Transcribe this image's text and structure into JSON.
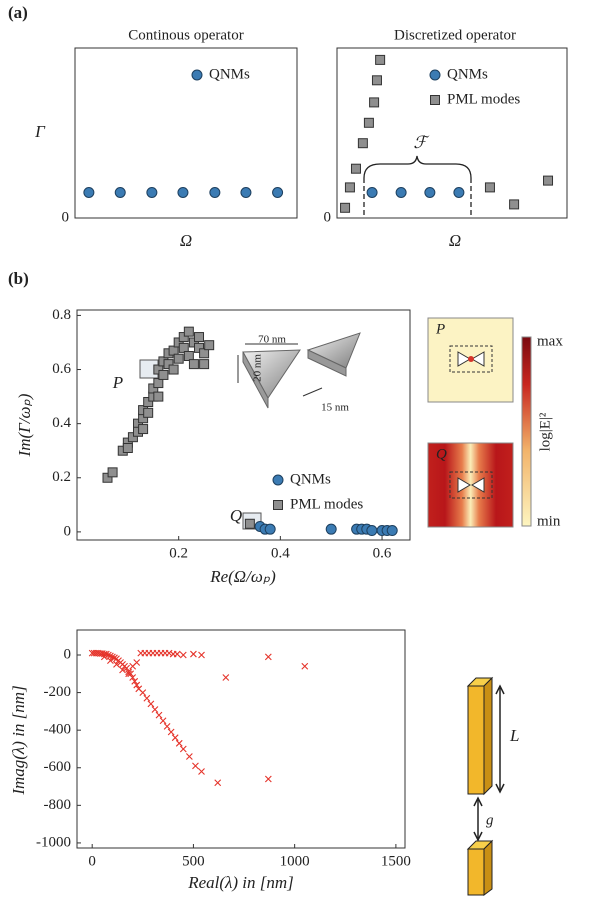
{
  "panel_labels": [
    "(a)",
    "(b)"
  ],
  "chart_data": [
    {
      "type": "scatter",
      "title": "Continous operator",
      "x_label": "Ω",
      "y_label": "Γ",
      "xlim": [
        0,
        8
      ],
      "ylim": [
        0,
        1
      ],
      "yticks": [
        0
      ],
      "legend": "upper right",
      "series": [
        {
          "name": "QNMs",
          "color": "#3b7bb3",
          "marker": "circle",
          "x": [
            0.5,
            1.63,
            2.77,
            3.89,
            5.04,
            6.16,
            7.3
          ],
          "y": [
            0.15,
            0.15,
            0.15,
            0.15,
            0.15,
            0.15,
            0.15
          ]
        }
      ]
    },
    {
      "type": "scatter",
      "title": "Discretized operator",
      "x_label": "Ω",
      "xlim": [
        0,
        8
      ],
      "ylim": [
        0,
        1
      ],
      "yticks": [
        0
      ],
      "legend": "upper right",
      "annotations": [
        "ℱ"
      ],
      "series": [
        {
          "name": "QNMs",
          "color": "#3b7bb3",
          "marker": "circle",
          "x": [
            1.22,
            2.23,
            3.23,
            4.24
          ],
          "y": [
            0.15,
            0.15,
            0.15,
            0.15
          ]
        },
        {
          "name": "PML modes",
          "color": "#8f8f8f",
          "marker": "square",
          "x": [
            0.28,
            0.45,
            0.66,
            0.9,
            1.11,
            1.29,
            1.39,
            1.5,
            5.32,
            6.16,
            7.34
          ],
          "y": [
            0.06,
            0.18,
            0.29,
            0.44,
            0.56,
            0.68,
            0.81,
            0.93,
            0.18,
            0.08,
            0.22
          ]
        }
      ]
    },
    {
      "type": "scatter",
      "x_label": "Re(Ω/ωₚ)",
      "y_label": "Im(Γ/ωₚ)",
      "xlim": [
        0,
        0.655
      ],
      "ylim": [
        -0.03,
        0.82
      ],
      "xticks": [
        0.2,
        0.4,
        0.6
      ],
      "yticks": [
        0,
        0.2,
        0.4,
        0.6,
        0.8
      ],
      "legend": "lower right",
      "annotations": [
        "P",
        "Q",
        "70 nm",
        "20 nm",
        "15 nm"
      ],
      "colorbar": {
        "max": "max",
        "min": "min",
        "label": "log|E|²"
      },
      "series": [
        {
          "name": "QNMs",
          "color": "#3b7bb3",
          "marker": "circle",
          "x": [
            0.36,
            0.37,
            0.38,
            0.5,
            0.55,
            0.56,
            0.57,
            0.58,
            0.6,
            0.61,
            0.62
          ],
          "y": [
            0.02,
            0.01,
            0.01,
            0.01,
            0.01,
            0.01,
            0.01,
            0.005,
            0.005,
            0.005,
            0.005
          ]
        },
        {
          "name": "PML modes",
          "color": "#8f8f8f",
          "marker": "square",
          "x": [
            0.06,
            0.07,
            0.09,
            0.1,
            0.1,
            0.11,
            0.12,
            0.12,
            0.13,
            0.13,
            0.13,
            0.14,
            0.14,
            0.15,
            0.15,
            0.16,
            0.16,
            0.17,
            0.17,
            0.18,
            0.18,
            0.19,
            0.19,
            0.2,
            0.2,
            0.21,
            0.21,
            0.22,
            0.22,
            0.23,
            0.23,
            0.24,
            0.24,
            0.25,
            0.25,
            0.26,
            0.16,
            0.34
          ],
          "y": [
            0.2,
            0.22,
            0.3,
            0.33,
            0.31,
            0.35,
            0.4,
            0.37,
            0.42,
            0.45,
            0.38,
            0.48,
            0.44,
            0.5,
            0.53,
            0.55,
            0.6,
            0.58,
            0.63,
            0.62,
            0.66,
            0.6,
            0.67,
            0.64,
            0.7,
            0.68,
            0.72,
            0.74,
            0.65,
            0.7,
            0.62,
            0.68,
            0.72,
            0.66,
            0.62,
            0.69,
            0.5,
            0.03
          ]
        }
      ]
    },
    {
      "type": "scatter",
      "x_label": "Real(λ) in [nm]",
      "y_label": "Imag(λ) in [nm]",
      "xlim": [
        -75,
        1545
      ],
      "ylim": [
        -1027,
        133
      ],
      "xticks": [
        0,
        500,
        1000,
        1500
      ],
      "yticks": [
        0,
        -200,
        -400,
        -600,
        -800,
        -1000
      ],
      "series": [
        {
          "color": "#e5332a",
          "marker": "x",
          "x": [
            0,
            10,
            20,
            30,
            40,
            50,
            60,
            70,
            80,
            90,
            100,
            110,
            120,
            130,
            140,
            150,
            160,
            170,
            180,
            190,
            200,
            210,
            220,
            230,
            250,
            270,
            290,
            310,
            330,
            350,
            370,
            390,
            410,
            430,
            450,
            480,
            510,
            540,
            620,
            240,
            260,
            280,
            300,
            320,
            340,
            360,
            380,
            400,
            420,
            450,
            500,
            540,
            660,
            870,
            870,
            1050,
            60,
            90,
            120,
            150,
            180,
            200,
            220
          ],
          "y": [
            10,
            10,
            10,
            10,
            8,
            8,
            5,
            5,
            0,
            -5,
            -10,
            -15,
            -20,
            -30,
            -40,
            -50,
            -60,
            -70,
            -90,
            -100,
            -120,
            -140,
            -160,
            -180,
            -200,
            -230,
            -260,
            -290,
            -320,
            -350,
            -380,
            -410,
            -440,
            -470,
            -500,
            -540,
            -590,
            -620,
            -680,
            10,
            10,
            10,
            10,
            10,
            10,
            10,
            10,
            5,
            5,
            0,
            5,
            0,
            -120,
            -10,
            -660,
            -60,
            -10,
            -30,
            -50,
            -80,
            -100,
            -60,
            -40
          ]
        }
      ]
    }
  ],
  "diagram": {
    "labels": [
      "L",
      "g"
    ]
  }
}
